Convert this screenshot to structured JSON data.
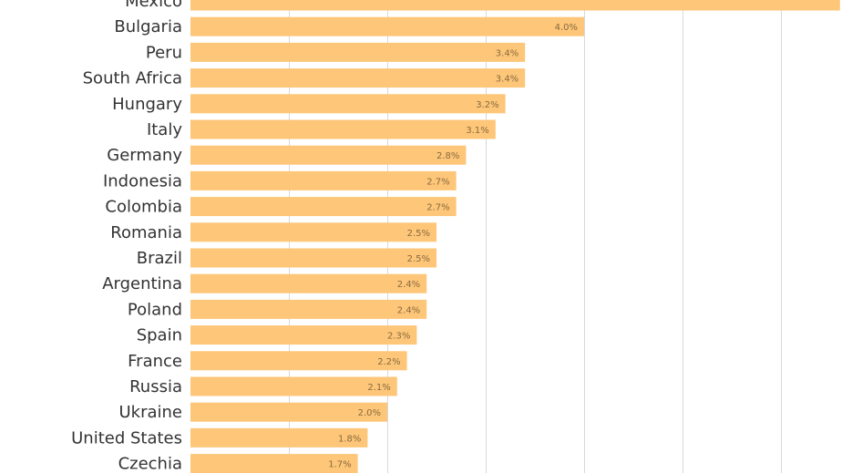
{
  "chart_data": {
    "type": "bar",
    "orientation": "horizontal",
    "categories": [
      "Mexico",
      "Bulgaria",
      "Peru",
      "South Africa",
      "Hungary",
      "Italy",
      "Germany",
      "Indonesia",
      "Colombia",
      "Romania",
      "Brazil",
      "Argentina",
      "Poland",
      "Spain",
      "France",
      "Russia",
      "Ukraine",
      "United States",
      "Czechia"
    ],
    "values": [
      6.6,
      4.0,
      3.4,
      3.4,
      3.2,
      3.1,
      2.8,
      2.7,
      2.7,
      2.5,
      2.5,
      2.4,
      2.4,
      2.3,
      2.2,
      2.1,
      2.0,
      1.8,
      1.7
    ],
    "value_labels": [
      "",
      "4.0%",
      "3.4%",
      "3.4%",
      "3.2%",
      "3.1%",
      "2.8%",
      "2.7%",
      "2.7%",
      "2.5%",
      "2.5%",
      "2.4%",
      "2.4%",
      "2.3%",
      "2.2%",
      "2.1%",
      "2.0%",
      "1.8%",
      "1.7%"
    ],
    "xlim": [
      0,
      6.6
    ],
    "gridlines_x": [
      1,
      2,
      3,
      4,
      5,
      6
    ],
    "grid": true,
    "bar_color": "#FDC679",
    "gridline_color": "#d9d9d9",
    "title": "",
    "xlabel": "",
    "ylabel": ""
  }
}
